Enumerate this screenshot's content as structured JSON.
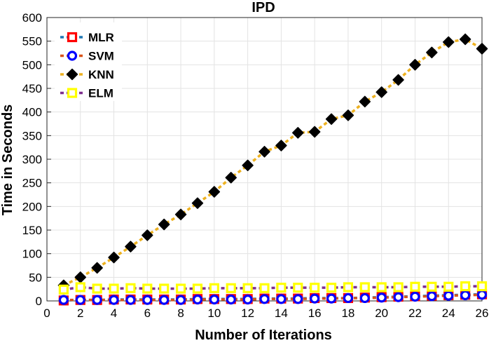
{
  "chart_data": {
    "type": "line",
    "title": "IPD",
    "xlabel": "Number of Iterations",
    "ylabel": "Time in Seconds",
    "xlim": [
      0,
      26
    ],
    "ylim": [
      0,
      600
    ],
    "x_ticks": [
      0,
      2,
      4,
      6,
      8,
      10,
      12,
      14,
      16,
      18,
      20,
      22,
      24,
      26
    ],
    "y_ticks": [
      0,
      50,
      100,
      150,
      200,
      250,
      300,
      350,
      400,
      450,
      500,
      550,
      600
    ],
    "grid": true,
    "legend_position": "top-left",
    "x": [
      1,
      2,
      3,
      4,
      5,
      6,
      7,
      8,
      9,
      10,
      11,
      12,
      13,
      14,
      15,
      16,
      17,
      18,
      19,
      20,
      21,
      22,
      23,
      24,
      25,
      26
    ],
    "series": [
      {
        "name": "MLR",
        "line_color": "#1f77b4",
        "marker": "square",
        "marker_edge": "#ff0000",
        "marker_face": "#ffffff",
        "values": [
          1,
          2,
          2,
          3,
          3,
          3,
          3,
          3,
          4,
          4,
          4,
          4,
          5,
          5,
          5,
          6,
          6,
          6,
          7,
          8,
          9,
          10,
          11,
          12,
          13,
          14
        ]
      },
      {
        "name": "SVM",
        "line_color": "#d95319",
        "marker": "circle",
        "marker_edge": "#0000ff",
        "marker_face": "#ffffff",
        "values": [
          2,
          2,
          2,
          2,
          2,
          2,
          2,
          2,
          3,
          3,
          3,
          3,
          4,
          4,
          4,
          5,
          5,
          6,
          6,
          7,
          8,
          9,
          10,
          11,
          12,
          13
        ]
      },
      {
        "name": "KNN",
        "line_color": "#edb120",
        "marker": "diamond",
        "marker_edge": "#000000",
        "marker_face": "#000000",
        "values": [
          33,
          50,
          70,
          92,
          115,
          139,
          162,
          183,
          207,
          231,
          261,
          287,
          316,
          329,
          356,
          358,
          385,
          393,
          422,
          442,
          468,
          500,
          526,
          548,
          554,
          534
        ]
      },
      {
        "name": "ELM",
        "line_color": "#7e2f8e",
        "marker": "square",
        "marker_edge": "#ffff00",
        "marker_face": "#ffffff",
        "values": [
          24,
          29,
          26,
          26,
          27,
          26,
          26,
          26,
          26,
          27,
          27,
          27,
          27,
          28,
          28,
          28,
          28,
          29,
          29,
          29,
          29,
          30,
          30,
          30,
          31,
          31
        ]
      }
    ]
  }
}
